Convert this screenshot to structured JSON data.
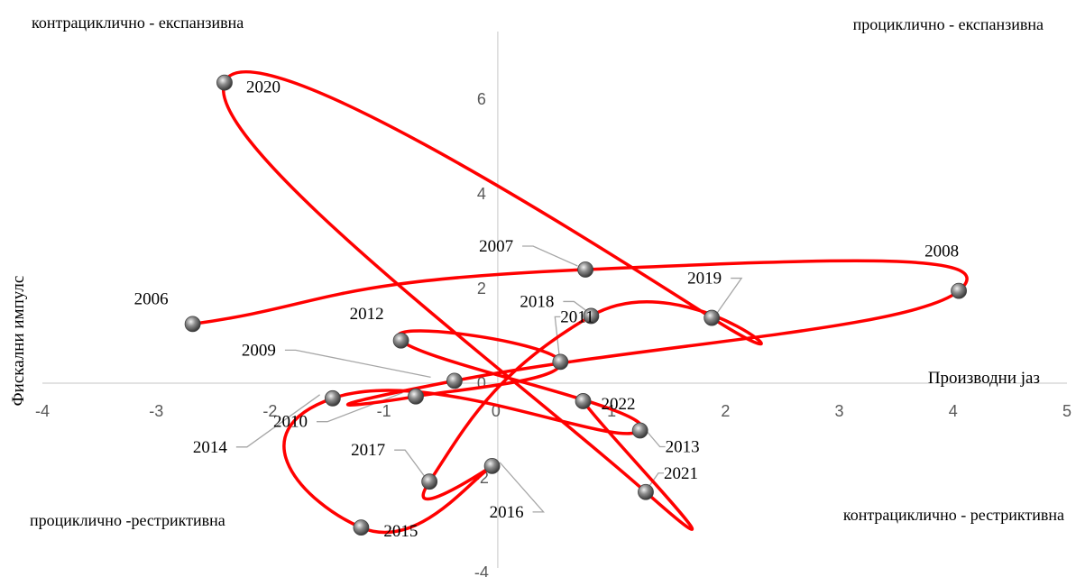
{
  "chart_data": {
    "type": "scatter",
    "xlabel": "Производни јаз",
    "ylabel": "Фискални импулс",
    "xlim": [
      -4,
      5
    ],
    "ylim": [
      -4,
      7
    ],
    "x_ticks": [
      -4,
      -3,
      -2,
      -1,
      0,
      1,
      2,
      3,
      4,
      5
    ],
    "y_ticks": [
      -4,
      -2,
      0,
      2,
      4,
      6
    ],
    "grid": false,
    "legend": "none",
    "colors": {
      "line": "#ff0000",
      "marker": "#7f7f7f",
      "axis": "#d9d9d9",
      "leader": "#a6a6a6"
    },
    "quadrant_labels": {
      "top_left": "контрациклично - експанзивна",
      "top_right": "проциклично - експанзивна",
      "bottom_left": "проциклично -рестриктивна",
      "bottom_right": "контрациклично - рестриктивна"
    },
    "series": [
      {
        "points": [
          {
            "label": "2006",
            "x": -2.68,
            "y": 1.25
          },
          {
            "label": "2007",
            "x": 0.77,
            "y": 2.4
          },
          {
            "label": "2008",
            "x": 4.05,
            "y": 1.95
          },
          {
            "label": "2009",
            "x": -0.38,
            "y": 0.05
          },
          {
            "label": "2010",
            "x": -0.72,
            "y": -0.28
          },
          {
            "label": "2011",
            "x": 0.55,
            "y": 0.45
          },
          {
            "label": "2012",
            "x": -0.85,
            "y": 0.9
          },
          {
            "label": "2013",
            "x": 1.25,
            "y": -1.0
          },
          {
            "label": "2014",
            "x": -1.45,
            "y": -0.32
          },
          {
            "label": "2015",
            "x": -1.2,
            "y": -3.05
          },
          {
            "label": "2016",
            "x": -0.05,
            "y": -1.75
          },
          {
            "label": "2017",
            "x": -0.6,
            "y": -2.08
          },
          {
            "label": "2018",
            "x": 0.82,
            "y": 1.42
          },
          {
            "label": "2019",
            "x": 1.88,
            "y": 1.38
          },
          {
            "label": "2020",
            "x": -2.4,
            "y": 6.35
          },
          {
            "label": "2021",
            "x": 1.3,
            "y": -2.3
          },
          {
            "label": "2022",
            "x": 0.75,
            "y": -0.38
          }
        ]
      }
    ]
  }
}
